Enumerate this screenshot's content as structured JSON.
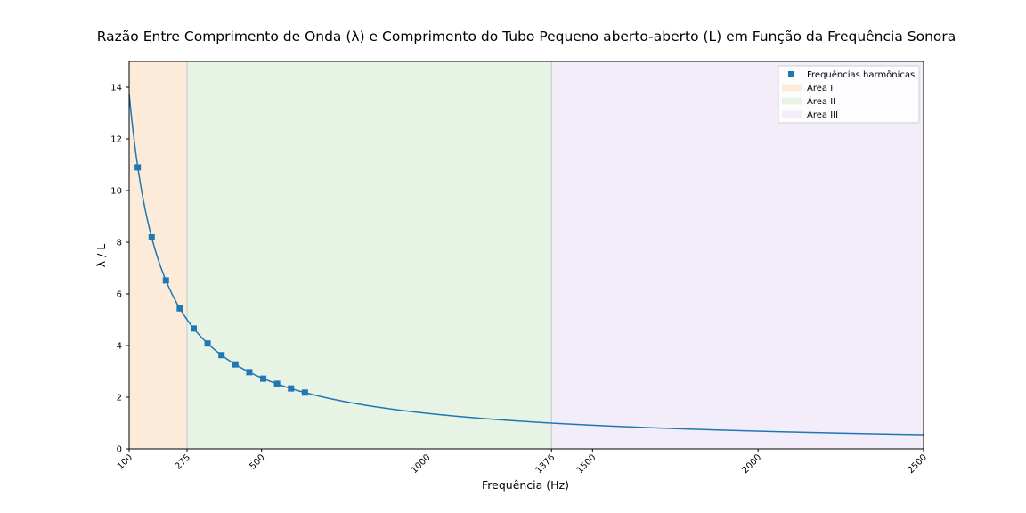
{
  "chart_data": {
    "type": "line",
    "title": "Razão Entre Comprimento de Onda (λ) e Comprimento do Tubo Pequeno aberto-aberto (L) em Função da Frequência Sonora",
    "xlabel": "Frequência (Hz)",
    "ylabel": "λ / L",
    "xlim": [
      100,
      2500
    ],
    "ylim": [
      0,
      15
    ],
    "x_ticks": [
      100,
      275,
      500,
      1000,
      1376,
      1500,
      2000,
      2500
    ],
    "y_ticks": [
      0,
      2,
      4,
      6,
      8,
      10,
      12,
      14
    ],
    "curve": {
      "formula": "lambda_over_L = 1376 / f",
      "x_start": 100,
      "x_end": 2500,
      "color": "#1f77b4"
    },
    "series": [
      {
        "name": "Frequências harmônicas",
        "marker": "square",
        "color": "#1f77b4",
        "x": [
          126,
          168,
          211,
          253,
          295,
          337,
          379,
          421,
          463,
          505,
          547,
          589,
          631
        ],
        "y": [
          10.9,
          8.19,
          6.52,
          5.44,
          4.66,
          4.08,
          3.63,
          3.27,
          2.97,
          2.72,
          2.52,
          2.34,
          2.18
        ]
      }
    ],
    "areas": [
      {
        "name": "Área I",
        "x_range": [
          100,
          275
        ],
        "color": "#fdebd9"
      },
      {
        "name": "Área II",
        "x_range": [
          275,
          1376
        ],
        "color": "#e6f3e5"
      },
      {
        "name": "Área III",
        "x_range": [
          1376,
          2500
        ],
        "color": "#f2edf8"
      }
    ],
    "grid": false,
    "legend_position": "top-right"
  }
}
